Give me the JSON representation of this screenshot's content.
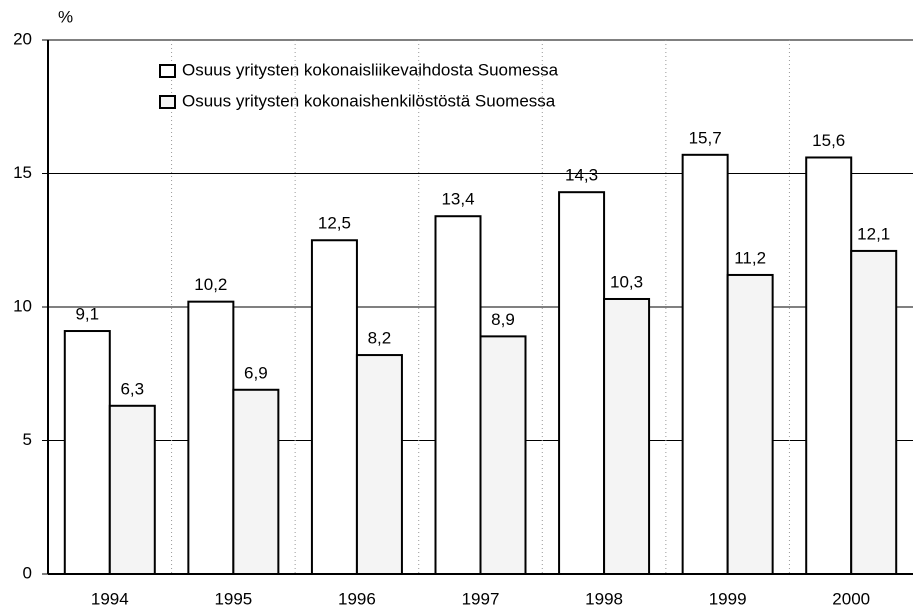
{
  "chart_data": {
    "type": "bar",
    "y_axis_label": "%",
    "categories": [
      "1994",
      "1995",
      "1996",
      "1997",
      "1998",
      "1999",
      "2000"
    ],
    "series": [
      {
        "name": "Osuus yritysten kokonaisliikevaihdosta Suomessa",
        "color": "#ffffff",
        "values": [
          9.1,
          10.2,
          12.5,
          13.4,
          14.3,
          15.7,
          15.6
        ],
        "value_labels": [
          "9,1",
          "10,2",
          "12,5",
          "13,4",
          "14,3",
          "15,7",
          "15,6"
        ]
      },
      {
        "name": "Osuus yritysten kokonaishenkilöstöstä Suomessa",
        "color": "#f4f4f4",
        "values": [
          6.3,
          6.9,
          8.2,
          8.9,
          10.3,
          11.2,
          12.1
        ],
        "value_labels": [
          "6,3",
          "6,9",
          "8,2",
          "8,9",
          "10,3",
          "11,2",
          "12,1"
        ]
      }
    ],
    "ylim": [
      0,
      20
    ],
    "yticks": [
      0,
      5,
      10,
      15,
      20
    ],
    "grid": true,
    "legend": "top-left"
  }
}
